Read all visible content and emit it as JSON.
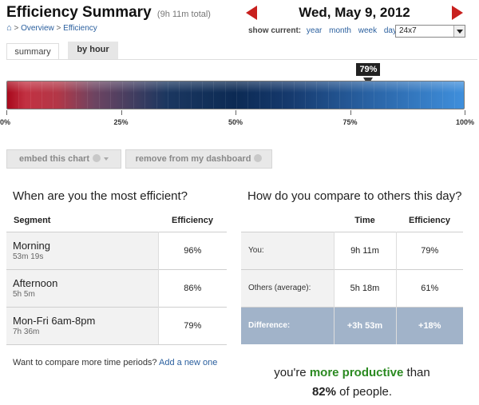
{
  "header": {
    "title": "Efficiency Summary",
    "subtitle": "(9h 11m total)",
    "breadcrumb": {
      "sep1": ">",
      "overview": "Overview",
      "sep2": ">",
      "current": "Efficiency"
    }
  },
  "date_nav": {
    "date": "Wed, May 9, 2012",
    "show_current_label": "show current:",
    "periods": [
      "year",
      "month",
      "week",
      "day"
    ],
    "selected_range": "24x7"
  },
  "tabs": [
    {
      "label": "summary",
      "active": true
    },
    {
      "label": "by hour",
      "active": false
    }
  ],
  "meter": {
    "value": 79,
    "value_label": "79%",
    "ticks": [
      "0%",
      "25%",
      "50%",
      "75%",
      "100%"
    ]
  },
  "actions": {
    "embed": "embed this chart",
    "remove": "remove from my dashboard"
  },
  "efficiency_panel": {
    "title": "When are you the most efficient?",
    "col_segment": "Segment",
    "col_efficiency": "Efficiency",
    "rows": [
      {
        "name": "Morning",
        "duration": "53m 19s",
        "efficiency": "96%"
      },
      {
        "name": "Afternoon",
        "duration": "5h 5m",
        "efficiency": "86%"
      },
      {
        "name": "Mon-Fri 6am-8pm",
        "duration": "7h 36m",
        "efficiency": "79%"
      }
    ],
    "compare_text": "Want to compare more time periods?",
    "compare_link": "Add a new one"
  },
  "compare_panel": {
    "title": "How do you compare to others this day?",
    "col_time": "Time",
    "col_efficiency": "Efficiency",
    "rows": [
      {
        "label": "You:",
        "time": "9h 11m",
        "efficiency": "79%"
      },
      {
        "label": "Others (average):",
        "time": "5h 18m",
        "efficiency": "61%"
      }
    ],
    "difference": {
      "label": "Difference:",
      "time": "+3h 53m",
      "efficiency": "+18%"
    }
  },
  "summary": {
    "prefix": "you're",
    "highlight": "more productive",
    "suffix": "than",
    "percent": "82%",
    "tail": "of people."
  },
  "colors": {
    "accent_link": "#2a5f9e",
    "arrow_red": "#c8201e",
    "productive_green": "#2b8a21",
    "difference_row": "#a1b3c9"
  }
}
